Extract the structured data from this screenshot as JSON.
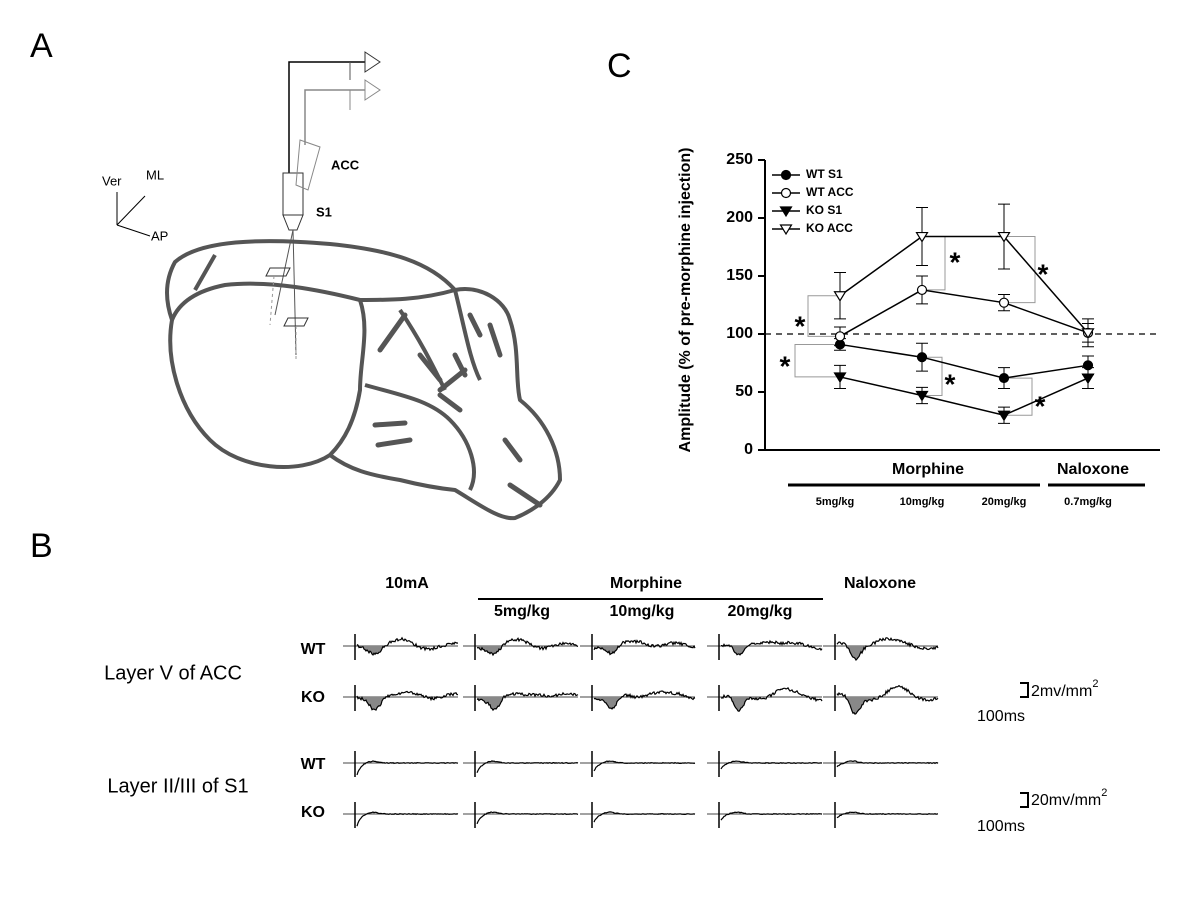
{
  "panels": {
    "a": "A",
    "b": "B",
    "c": "C"
  },
  "diagram": {
    "axes": [
      "Ver",
      "ML",
      "AP"
    ],
    "electrodes": [
      "ACC",
      "S1"
    ]
  },
  "traces": {
    "columns": [
      "10mA",
      "5mg/kg",
      "10mg/kg",
      "20mg/kg",
      "Naloxone"
    ],
    "group": "Morphine",
    "rows": [
      {
        "layer": "Layer V of ACC",
        "genotypes": [
          "WT",
          "KO"
        ],
        "scale": "2mv/mm",
        "scale_power": "2",
        "time": "100ms"
      },
      {
        "layer": "Layer II/III of S1",
        "genotypes": [
          "WT",
          "KO"
        ],
        "scale": "20mv/mm",
        "scale_power": "2",
        "time": "100ms"
      }
    ]
  },
  "chart_data": {
    "type": "line",
    "y_label": "Amplitude (% of pre-morphine injection)",
    "categories": [
      "5mg/kg",
      "10mg/kg",
      "20mg/kg",
      "0.7mg/kg"
    ],
    "groups": [
      "Morphine",
      "Naloxone"
    ],
    "ylim": [
      0,
      250
    ],
    "yticks": [
      0,
      50,
      100,
      150,
      200,
      250
    ],
    "reference_line": 100,
    "legend": "upper left",
    "series": [
      {
        "name": "WT S1",
        "color": "#000000",
        "marker": "circle",
        "filled": true,
        "values": [
          91,
          80,
          62,
          73
        ],
        "errors": [
          5,
          12,
          9,
          8
        ]
      },
      {
        "name": "WT ACC",
        "color": "#000000",
        "marker": "circle",
        "filled": false,
        "values": [
          98,
          138,
          127,
          101
        ],
        "errors": [
          8,
          12,
          7,
          12
        ]
      },
      {
        "name": "KO S1",
        "color": "#000000",
        "marker": "triangle-down",
        "filled": true,
        "values": [
          63,
          47,
          30,
          62
        ],
        "errors": [
          10,
          7,
          7,
          9
        ]
      },
      {
        "name": "KO ACC",
        "color": "#000000",
        "marker": "triangle-down",
        "filled": false,
        "values": [
          133,
          184,
          184,
          101
        ],
        "errors": [
          20,
          25,
          28,
          8
        ]
      }
    ],
    "annotations": [
      "*",
      "*",
      "*",
      "*",
      "*",
      "*"
    ]
  }
}
